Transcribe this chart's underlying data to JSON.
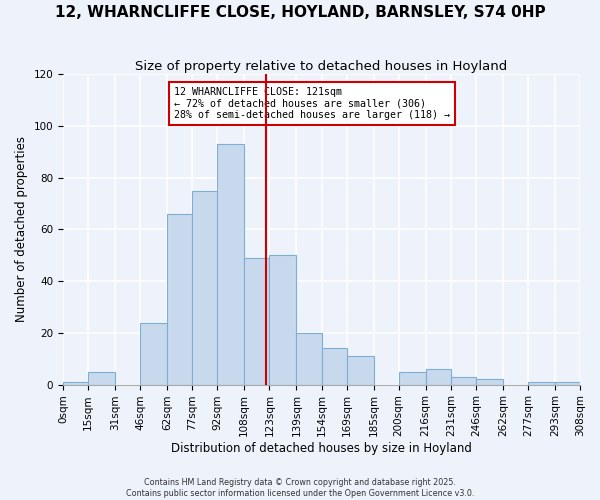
{
  "title": "12, WHARNCLIFFE CLOSE, HOYLAND, BARNSLEY, S74 0HP",
  "subtitle": "Size of property relative to detached houses in Hoyland",
  "xlabel": "Distribution of detached houses by size in Hoyland",
  "ylabel": "Number of detached properties",
  "bin_labels": [
    "0sqm",
    "15sqm",
    "31sqm",
    "46sqm",
    "62sqm",
    "77sqm",
    "92sqm",
    "108sqm",
    "123sqm",
    "139sqm",
    "154sqm",
    "169sqm",
    "185sqm",
    "200sqm",
    "216sqm",
    "231sqm",
    "246sqm",
    "262sqm",
    "277sqm",
    "293sqm",
    "308sqm"
  ],
  "bin_edges": [
    0,
    15,
    31,
    46,
    62,
    77,
    92,
    108,
    123,
    139,
    154,
    169,
    185,
    200,
    216,
    231,
    246,
    262,
    277,
    293,
    308
  ],
  "bar_heights": [
    1,
    5,
    0,
    24,
    66,
    75,
    93,
    49,
    50,
    20,
    14,
    11,
    0,
    5,
    6,
    3,
    2,
    0,
    1,
    1
  ],
  "bar_color": "#c8d9ee",
  "bar_edgecolor": "#7bafd4",
  "vline_x": 121,
  "vline_color": "#cc0000",
  "ylim": [
    0,
    120
  ],
  "yticks": [
    0,
    20,
    40,
    60,
    80,
    100,
    120
  ],
  "annotation_title": "12 WHARNCLIFFE CLOSE: 121sqm",
  "annotation_line1": "← 72% of detached houses are smaller (306)",
  "annotation_line2": "28% of semi-detached houses are larger (118) →",
  "footer1": "Contains HM Land Registry data © Crown copyright and database right 2025.",
  "footer2": "Contains public sector information licensed under the Open Government Licence v3.0.",
  "bg_color": "#eef2fa",
  "grid_color": "#ffffff",
  "title_fontsize": 11,
  "subtitle_fontsize": 9.5,
  "axis_label_fontsize": 8.5,
  "tick_fontsize": 7.5
}
